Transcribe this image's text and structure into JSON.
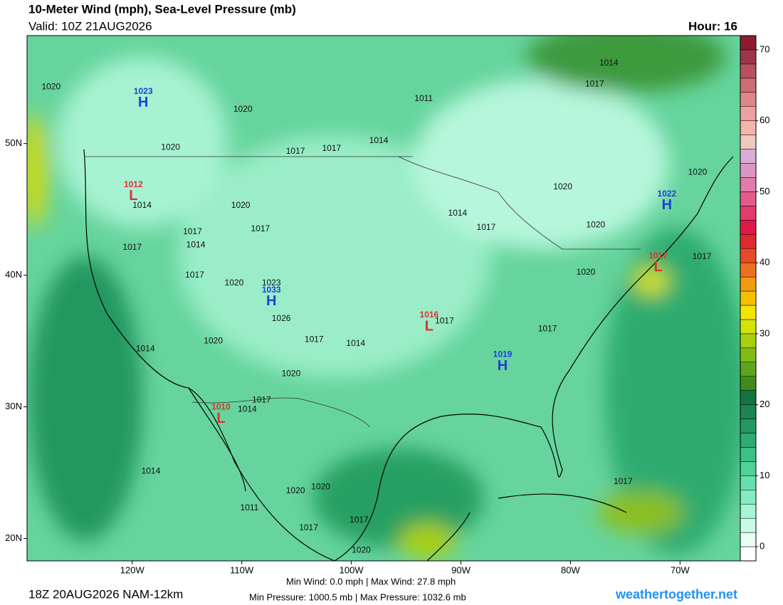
{
  "header": {
    "title": "10-Meter Wind (mph), Sea-Level Pressure (mb)",
    "valid": "Valid: 10Z 21AUG2026",
    "hour": "Hour: 16"
  },
  "map": {
    "xlim": [
      -129.6,
      -64.5
    ],
    "ylim": [
      18.3,
      58.2
    ],
    "xticks": [
      {
        "value": -120,
        "label": "120W"
      },
      {
        "value": -110,
        "label": "110W"
      },
      {
        "value": -100,
        "label": "100W"
      },
      {
        "value": -90,
        "label": "90W"
      },
      {
        "value": -80,
        "label": "80W"
      },
      {
        "value": -70,
        "label": "70W"
      }
    ],
    "yticks": [
      {
        "value": 50,
        "label": "50N"
      },
      {
        "value": 40,
        "label": "40N"
      },
      {
        "value": 30,
        "label": "30N"
      },
      {
        "value": 20,
        "label": "20N"
      }
    ],
    "high_color": "#1f3fd8",
    "low_color": "#e03030",
    "centers": [
      {
        "letter": "H",
        "value": 1023,
        "lon": -119.0,
        "lat": 53.3
      },
      {
        "letter": "L",
        "value": 1012,
        "lon": -119.9,
        "lat": 46.2
      },
      {
        "letter": "H",
        "value": 1022,
        "lon": -71.2,
        "lat": 45.5
      },
      {
        "letter": "L",
        "value": 1017,
        "lon": -72.0,
        "lat": 40.8
      },
      {
        "letter": "H",
        "value": 1033,
        "lon": -107.3,
        "lat": 38.2
      },
      {
        "letter": "L",
        "value": 1016,
        "lon": -92.9,
        "lat": 36.3
      },
      {
        "letter": "H",
        "value": 1019,
        "lon": -86.2,
        "lat": 33.3
      },
      {
        "letter": "L",
        "value": 1010,
        "lon": -111.9,
        "lat": 29.3
      }
    ],
    "isobar_labels": [
      {
        "value": 1020,
        "lon": -127.4,
        "lat": 54.3
      },
      {
        "value": 1020,
        "lon": -109.9,
        "lat": 52.6
      },
      {
        "value": 1020,
        "lon": -116.5,
        "lat": 49.7
      },
      {
        "value": 1017,
        "lon": -105.1,
        "lat": 49.4
      },
      {
        "value": 1017,
        "lon": -101.8,
        "lat": 49.6
      },
      {
        "value": 1011,
        "lon": -93.4,
        "lat": 53.4
      },
      {
        "value": 1014,
        "lon": -97.5,
        "lat": 50.2
      },
      {
        "value": 1014,
        "lon": -76.5,
        "lat": 56.1
      },
      {
        "value": 1017,
        "lon": -77.8,
        "lat": 54.5
      },
      {
        "value": 1020,
        "lon": -68.4,
        "lat": 47.8
      },
      {
        "value": 1020,
        "lon": -80.7,
        "lat": 46.7
      },
      {
        "value": 1014,
        "lon": -119.1,
        "lat": 45.3
      },
      {
        "value": 1020,
        "lon": -110.1,
        "lat": 45.3
      },
      {
        "value": 1017,
        "lon": -114.5,
        "lat": 43.3
      },
      {
        "value": 1017,
        "lon": -108.3,
        "lat": 43.5
      },
      {
        "value": 1014,
        "lon": -114.2,
        "lat": 42.3
      },
      {
        "value": 1017,
        "lon": -120.0,
        "lat": 42.1
      },
      {
        "value": 1014,
        "lon": -90.3,
        "lat": 44.7
      },
      {
        "value": 1017,
        "lon": -87.7,
        "lat": 43.6
      },
      {
        "value": 1020,
        "lon": -77.7,
        "lat": 43.8
      },
      {
        "value": 1017,
        "lon": -114.3,
        "lat": 40.0
      },
      {
        "value": 1020,
        "lon": -110.7,
        "lat": 39.4
      },
      {
        "value": 1023,
        "lon": -107.3,
        "lat": 39.4
      },
      {
        "value": 1026,
        "lon": -106.4,
        "lat": 36.7
      },
      {
        "value": 1017,
        "lon": -68.0,
        "lat": 41.4
      },
      {
        "value": 1020,
        "lon": -78.6,
        "lat": 40.2
      },
      {
        "value": 1017,
        "lon": -91.5,
        "lat": 36.5
      },
      {
        "value": 1017,
        "lon": -82.1,
        "lat": 35.9
      },
      {
        "value": 1017,
        "lon": -103.4,
        "lat": 35.1
      },
      {
        "value": 1014,
        "lon": -99.6,
        "lat": 34.8
      },
      {
        "value": 1014,
        "lon": -118.8,
        "lat": 34.4
      },
      {
        "value": 1020,
        "lon": -112.6,
        "lat": 35.0
      },
      {
        "value": 1020,
        "lon": -105.5,
        "lat": 32.5
      },
      {
        "value": 1017,
        "lon": -108.2,
        "lat": 30.5
      },
      {
        "value": 1014,
        "lon": -109.5,
        "lat": 29.8
      },
      {
        "value": 1014,
        "lon": -118.3,
        "lat": 25.1
      },
      {
        "value": 1020,
        "lon": -105.1,
        "lat": 23.6
      },
      {
        "value": 1020,
        "lon": -102.8,
        "lat": 23.9
      },
      {
        "value": 1011,
        "lon": -109.3,
        "lat": 22.3
      },
      {
        "value": 1017,
        "lon": -103.9,
        "lat": 20.8
      },
      {
        "value": 1017,
        "lon": -99.3,
        "lat": 21.4
      },
      {
        "value": 1020,
        "lon": -99.1,
        "lat": 19.1
      },
      {
        "value": 1017,
        "lon": -75.2,
        "lat": 24.3
      }
    ]
  },
  "colorbar": {
    "range": [
      -2,
      72
    ],
    "ticks": [
      0,
      10,
      20,
      30,
      40,
      50,
      60,
      70
    ],
    "colors": [
      "#ffffff",
      "#e6fff5",
      "#c8fbe6",
      "#a6f5d3",
      "#84edc0",
      "#66e0aa",
      "#4fd197",
      "#3cc083",
      "#2eac70",
      "#23985f",
      "#1a8550",
      "#137343",
      "#3f8c1c",
      "#5ea51c",
      "#82bb16",
      "#a9cf10",
      "#d3e30a",
      "#f2e600",
      "#f5c000",
      "#f29a10",
      "#ec7020",
      "#e64a28",
      "#e02830",
      "#e01848",
      "#e03c6c",
      "#e45c8c",
      "#e27ca8",
      "#da96c4",
      "#d8aed6",
      "#f0c8c0",
      "#f2b6a8",
      "#eea0a0",
      "#e08888",
      "#cc6c74",
      "#b85060",
      "#a03448",
      "#8c1c30"
    ]
  },
  "footer": {
    "run": "18Z 20AUG2026 NAM-12km",
    "wind": "Min Wind:  0.0 mph | Max Wind: 27.8 mph",
    "pressure": "Min Pressure: 1000.5 mb | Max Pressure: 1032.6 mb",
    "site": "weathertogether.net"
  }
}
